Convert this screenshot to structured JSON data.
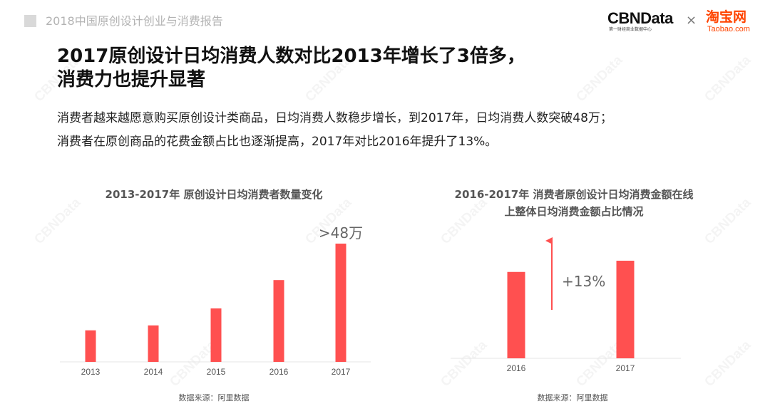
{
  "header": {
    "report_title": "2018中国原创设计创业与消费报告"
  },
  "brand": {
    "cbn_logo": "CBNData",
    "cbn_sub": "第一财经商业数据中心",
    "separator": "×",
    "taobao_logo": "淘宝网",
    "taobao_sub": "Taobao.com",
    "taobao_color": "#ff4400"
  },
  "main": {
    "title_line1": "2017原创设计日均消费人数对比2013年增长了3倍多，",
    "title_line2": "消费力也提升显著",
    "desc_line1": "消费者越来越愿意购买原创设计类商品，日均消费人数稳步增长，到2017年，日均消费人数突破48万；",
    "desc_line2": "消费者在原创商品的花费金额占比也逐渐提高，2017年对比2016年提升了13%。"
  },
  "watermark": "CBNData",
  "chart_data": [
    {
      "type": "bar",
      "title": "2013-2017年 原创设计日均消费者数量变化",
      "categories": [
        "2013",
        "2014",
        "2015",
        "2016",
        "2017"
      ],
      "values": [
        12.8,
        14.8,
        21.7,
        33.2,
        48
      ],
      "ylim": [
        0,
        48
      ],
      "bar_color": "#ff5050",
      "annotation": ">48万",
      "source": "数据来源：阿里数据"
    },
    {
      "type": "bar",
      "title_line1": "2016-2017年 消费者原创设计日均消费金额在线",
      "title_line2": "上整体日均消费金额占比情况",
      "categories": [
        "2016",
        "2017"
      ],
      "values": [
        100,
        113
      ],
      "ylim": [
        0,
        113
      ],
      "bar_color": "#ff5050",
      "annotation": "+13%",
      "source": "数据来源：阿里数据"
    }
  ]
}
